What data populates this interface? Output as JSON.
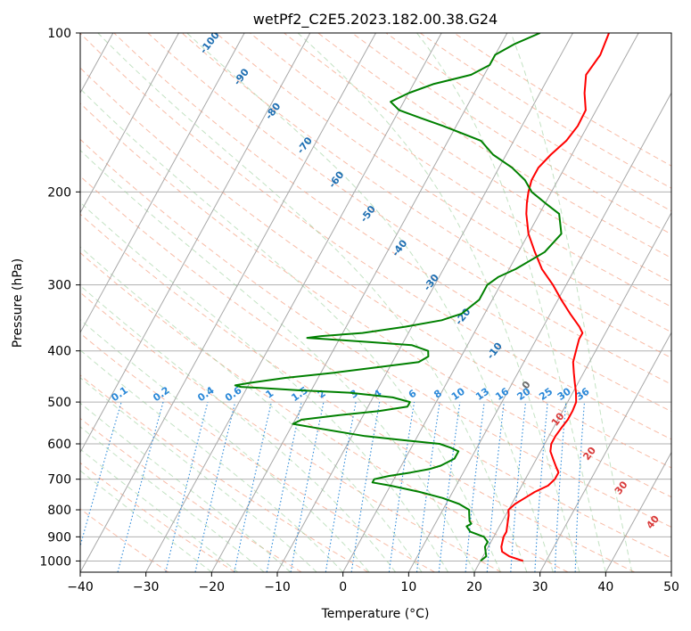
{
  "chart_data": {
    "type": "skew-t",
    "title": "wetPf2_C2E5.2023.182.00.38.G24",
    "xlabel": "Temperature (°C)",
    "ylabel": "Pressure (hPa)",
    "xlim": [
      -40,
      50
    ],
    "ylim": [
      1050,
      100
    ],
    "y_scale": "log",
    "grid": true,
    "x_ticks": [
      "−40",
      "−30",
      "−20",
      "−10",
      "0",
      "10",
      "20",
      "30",
      "40",
      "50"
    ],
    "y_ticks": [
      "100",
      "200",
      "300",
      "400",
      "500",
      "600",
      "700",
      "800",
      "900",
      "1000"
    ],
    "isotherm_labels": [
      "-100",
      "-90",
      "-80",
      "-70",
      "-60",
      "-50",
      "-40",
      "-30",
      "-20",
      "-10",
      "0",
      "10",
      "20",
      "30",
      "40"
    ],
    "mixing_ratio_labels": [
      "0.1",
      "0.2",
      "0.4",
      "0.6",
      "1",
      "1.5",
      "2",
      "3",
      "4",
      "6",
      "8",
      "10",
      "13",
      "16",
      "20",
      "25",
      "30",
      "36"
    ],
    "series": [
      {
        "color": "#ff0000",
        "points": [
          [
            1000,
            26.5
          ],
          [
            980,
            24
          ],
          [
            960,
            22.5
          ],
          [
            940,
            22
          ],
          [
            900,
            21.5
          ],
          [
            880,
            21.5
          ],
          [
            850,
            21
          ],
          [
            820,
            20.5
          ],
          [
            800,
            20
          ],
          [
            780,
            20.5
          ],
          [
            760,
            21.5
          ],
          [
            740,
            22.5
          ],
          [
            720,
            24
          ],
          [
            700,
            24.5
          ],
          [
            680,
            24.5
          ],
          [
            660,
            23.5
          ],
          [
            640,
            22.5
          ],
          [
            620,
            21.5
          ],
          [
            600,
            21
          ],
          [
            580,
            21
          ],
          [
            560,
            21.2
          ],
          [
            540,
            21.5
          ],
          [
            520,
            21.5
          ],
          [
            500,
            21.3
          ],
          [
            480,
            20.5
          ],
          [
            460,
            19.5
          ],
          [
            440,
            18.5
          ],
          [
            420,
            17.5
          ],
          [
            400,
            17
          ],
          [
            380,
            16.5
          ],
          [
            370,
            16.5
          ],
          [
            360,
            15.5
          ],
          [
            340,
            13
          ],
          [
            320,
            10.5
          ],
          [
            300,
            8
          ],
          [
            280,
            5
          ],
          [
            260,
            2.5
          ],
          [
            240,
            0
          ],
          [
            220,
            -2
          ],
          [
            210,
            -2.8
          ],
          [
            200,
            -3.5
          ],
          [
            190,
            -4
          ],
          [
            180,
            -4
          ],
          [
            170,
            -3.2
          ],
          [
            160,
            -2
          ],
          [
            150,
            -1.5
          ],
          [
            140,
            -1.6
          ],
          [
            130,
            -3.2
          ],
          [
            120,
            -4.5
          ],
          [
            110,
            -4
          ],
          [
            100,
            -4.5
          ]
        ]
      },
      {
        "color": "#008000",
        "points": [
          [
            1000,
            20
          ],
          [
            980,
            20.5
          ],
          [
            960,
            20
          ],
          [
            940,
            19.5
          ],
          [
            920,
            19.5
          ],
          [
            900,
            18.5
          ],
          [
            880,
            16
          ],
          [
            860,
            15
          ],
          [
            850,
            15.5
          ],
          [
            840,
            15
          ],
          [
            820,
            14.5
          ],
          [
            800,
            14
          ],
          [
            780,
            12
          ],
          [
            760,
            9
          ],
          [
            740,
            5
          ],
          [
            720,
            0
          ],
          [
            710,
            -3
          ],
          [
            700,
            -3
          ],
          [
            690,
            -1
          ],
          [
            680,
            2
          ],
          [
            670,
            4.5
          ],
          [
            660,
            6
          ],
          [
            640,
            7.5
          ],
          [
            620,
            7.5
          ],
          [
            610,
            6
          ],
          [
            600,
            4
          ],
          [
            590,
            -2
          ],
          [
            580,
            -8
          ],
          [
            570,
            -12
          ],
          [
            560,
            -16
          ],
          [
            550,
            -20
          ],
          [
            540,
            -19
          ],
          [
            530,
            -14
          ],
          [
            520,
            -8
          ],
          [
            510,
            -4
          ],
          [
            500,
            -4
          ],
          [
            490,
            -7
          ],
          [
            480,
            -14
          ],
          [
            475,
            -22
          ],
          [
            470,
            -28
          ],
          [
            468,
            -31
          ],
          [
            465,
            -32
          ],
          [
            460,
            -30
          ],
          [
            450,
            -25
          ],
          [
            440,
            -18
          ],
          [
            430,
            -12
          ],
          [
            420,
            -6
          ],
          [
            410,
            -5
          ],
          [
            400,
            -5.5
          ],
          [
            390,
            -8.5
          ],
          [
            385,
            -15
          ],
          [
            380,
            -22
          ],
          [
            378,
            -25
          ],
          [
            375,
            -23
          ],
          [
            370,
            -17
          ],
          [
            360,
            -11
          ],
          [
            350,
            -6
          ],
          [
            340,
            -3.5
          ],
          [
            320,
            -2
          ],
          [
            300,
            -2
          ],
          [
            290,
            -1
          ],
          [
            280,
            1
          ],
          [
            260,
            4
          ],
          [
            240,
            5
          ],
          [
            220,
            3
          ],
          [
            210,
            0
          ],
          [
            200,
            -3
          ],
          [
            190,
            -5
          ],
          [
            180,
            -8
          ],
          [
            170,
            -12
          ],
          [
            160,
            -15
          ],
          [
            150,
            -22
          ],
          [
            145,
            -26
          ],
          [
            140,
            -30
          ],
          [
            135,
            -32
          ],
          [
            130,
            -30
          ],
          [
            125,
            -27
          ],
          [
            120,
            -22
          ],
          [
            115,
            -20
          ],
          [
            110,
            -20
          ],
          [
            105,
            -18
          ],
          [
            100,
            -15
          ]
        ]
      }
    ]
  }
}
